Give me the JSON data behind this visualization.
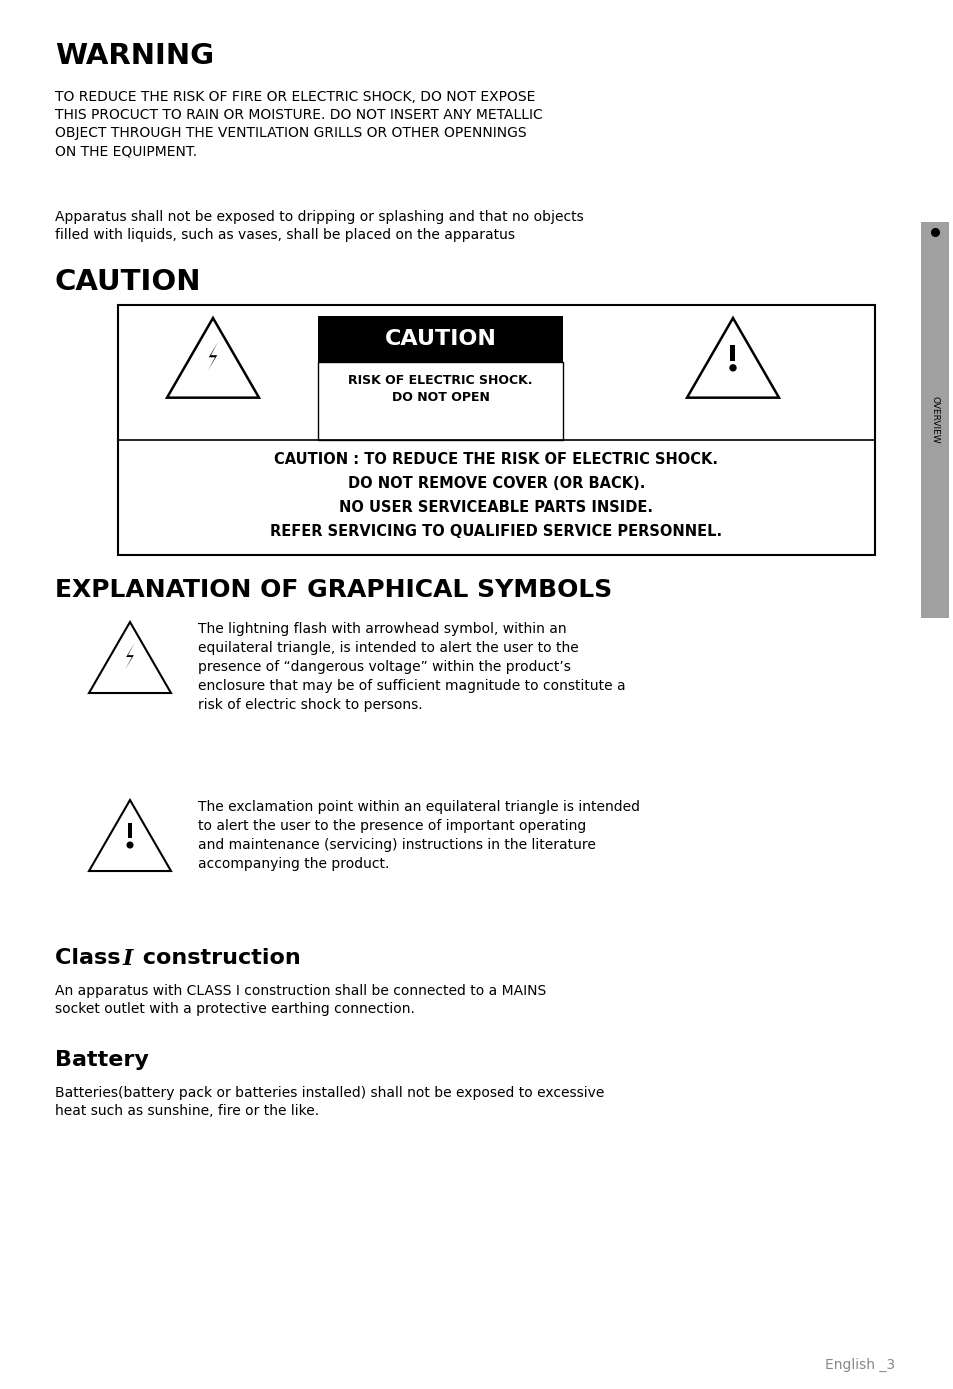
{
  "bg_color": "#ffffff",
  "warning_title": "WARNING",
  "warning_body1": "TO REDUCE THE RISK OF FIRE OR ELECTRIC SHOCK, DO NOT EXPOSE\nTHIS PROCUCT TO RAIN OR MOISTURE. DO NOT INSERT ANY METALLIC\nOBJECT THROUGH THE VENTILATION GRILLS OR OTHER OPENNINGS\nON THE EQUIPMENT.",
  "warning_body2": "Apparatus shall not be exposed to dripping or splashing and that no objects\nfilled with liquids, such as vases, shall be placed on the apparatus",
  "caution_title": "CAUTION",
  "caution_box_label": "CAUTION",
  "caution_sub1": "RISK OF ELECTRIC SHOCK.",
  "caution_sub2": "DO NOT OPEN",
  "caution_body1": "CAUTION : TO REDUCE THE RISK OF ELECTRIC SHOCK.",
  "caution_body2": "DO NOT REMOVE COVER (OR BACK).",
  "caution_body3": "NO USER SERVICEABLE PARTS INSIDE.",
  "caution_body4": "REFER SERVICING TO QUALIFIED SERVICE PERSONNEL.",
  "explan_title": "EXPLANATION OF GRAPHICAL SYMBOLS",
  "explan1": "The lightning flash with arrowhead symbol, within an\nequilateral triangle, is intended to alert the user to the\npresence of “dangerous voltage” within the product’s\nenclosure that may be of sufficient magnitude to constitute a\nrisk of electric shock to persons.",
  "explan2": "The exclamation point within an equilateral triangle is intended\nto alert the user to the presence of important operating\nand maintenance (servicing) instructions in the literature\naccompanying the product.",
  "class_title_pre": "Class ",
  "class_title_I": "I",
  "class_title_post": " construction",
  "class_body": "An apparatus with CLASS I construction shall be connected to a MAINS\nsocket outlet with a protective earthing connection.",
  "battery_title": "Battery",
  "battery_body": "Batteries(battery pack or batteries installed) shall not be exposed to excessive\nheat such as sunshine, fire or the like.",
  "footer": "English _3",
  "sidebar_text": "OVERVIEW",
  "sidebar_color": "#a0a0a0"
}
